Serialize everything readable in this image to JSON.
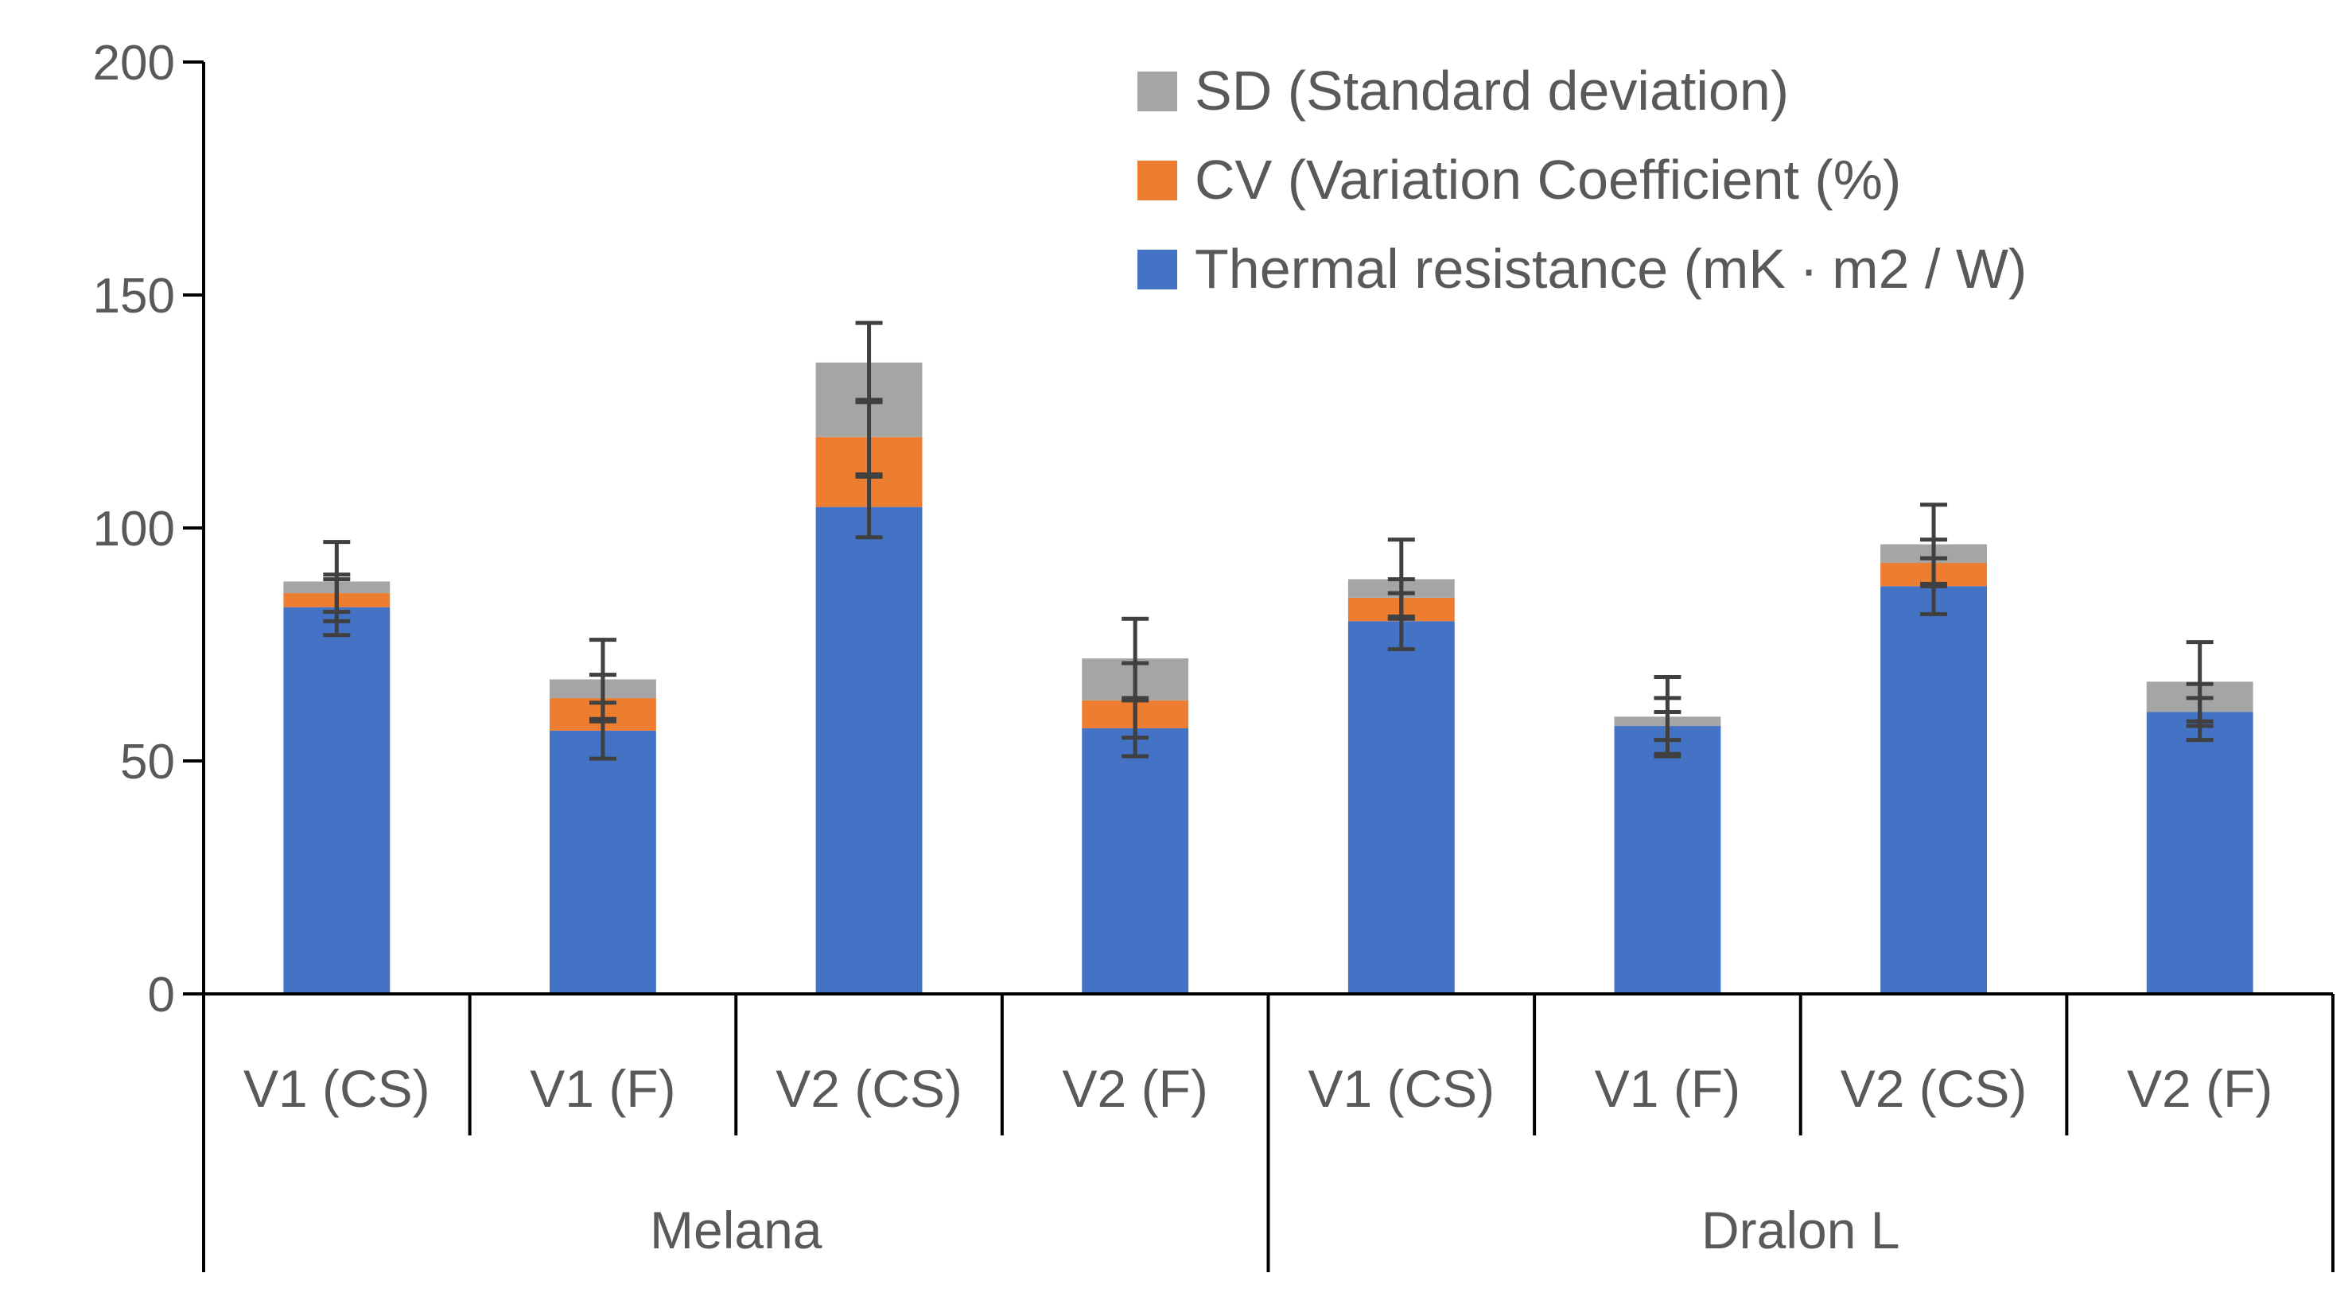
{
  "chart_data": {
    "type": "bar",
    "stacked": true,
    "title": "",
    "xlabel": "",
    "ylabel": "",
    "ylim": [
      0,
      200
    ],
    "yticks": [
      0,
      50,
      100,
      150,
      200
    ],
    "grid": false,
    "legend_position": "top-right",
    "groups": [
      {
        "label": "Melana",
        "categories": [
          "V1  (CS)",
          "V1 (F)",
          "V2 (CS)",
          "V2 (F)"
        ]
      },
      {
        "label": "Dralon L",
        "categories": [
          "V1 (CS)",
          "V1 (F)",
          "V2 (CS)",
          "V2 (F)"
        ]
      }
    ],
    "categories": [
      "V1  (CS)",
      "V1 (F)",
      "V2 (CS)",
      "V2 (F)",
      "V1 (CS)",
      "V1 (F)",
      "V2 (CS)",
      "V2 (F)"
    ],
    "series": [
      {
        "name": "Thermal resistance  (mK ∙ m2 / W)",
        "color": "#4472C4",
        "values": [
          83,
          56.5,
          104.5,
          57,
          80,
          57.5,
          87.5,
          60.5
        ],
        "error": [
          6,
          6,
          6.5,
          6,
          6,
          6,
          6,
          6
        ]
      },
      {
        "name": "CV (Variation Coefficient  (%)",
        "color": "#ED7D31",
        "values": [
          3,
          7,
          15,
          6,
          5,
          0,
          5,
          0
        ],
        "error": [
          4,
          5,
          8,
          8,
          4,
          3,
          5,
          3
        ]
      },
      {
        "name": "SD (Standard deviation)",
        "color": "#A5A5A5",
        "values": [
          2.5,
          4,
          16,
          9,
          4,
          2,
          4,
          6.5
        ],
        "error": [
          8.5,
          8.5,
          8.5,
          8.5,
          8.5,
          8.5,
          8.5,
          8.5
        ]
      }
    ]
  }
}
